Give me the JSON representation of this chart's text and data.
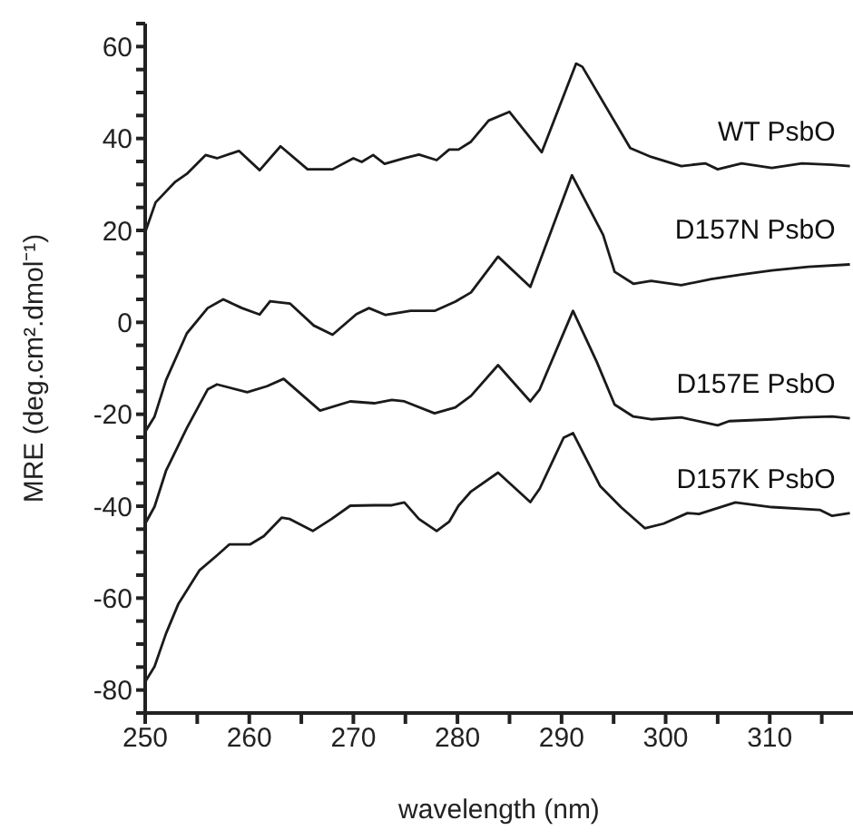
{
  "chart_data": {
    "type": "line",
    "xlabel": "wavelength (nm)",
    "ylabel": "MRE (deg.cm².dmol⁻¹)",
    "xlim": [
      250,
      318
    ],
    "ylim": [
      -85,
      65
    ],
    "xticks": [
      250,
      {
        "value": 255,
        "label": null
      },
      260,
      {
        "value": 265,
        "label": null
      },
      270,
      {
        "value": 275,
        "label": null
      },
      280,
      {
        "value": 285,
        "label": null
      },
      290,
      {
        "value": 295,
        "label": null
      },
      300,
      {
        "value": 305,
        "label": null
      },
      310,
      {
        "value": 315,
        "label": null
      }
    ],
    "yticks": [
      {
        "value": -85,
        "label": null
      },
      -80,
      {
        "value": -75,
        "label": null
      },
      {
        "value": -70,
        "label": null
      },
      {
        "value": -65,
        "label": null
      },
      -60,
      {
        "value": -55,
        "label": null
      },
      {
        "value": -50,
        "label": null
      },
      {
        "value": -45,
        "label": null
      },
      -40,
      {
        "value": -35,
        "label": null
      },
      {
        "value": -30,
        "label": null
      },
      {
        "value": -25,
        "label": null
      },
      -20,
      {
        "value": -15,
        "label": null
      },
      {
        "value": -10,
        "label": null
      },
      {
        "value": -5,
        "label": null
      },
      0,
      {
        "value": 5,
        "label": null
      },
      {
        "value": 10,
        "label": null
      },
      {
        "value": 15,
        "label": null
      },
      20,
      {
        "value": 25,
        "label": null
      },
      {
        "value": 30,
        "label": null
      },
      {
        "value": 35,
        "label": null
      },
      40,
      {
        "value": 45,
        "label": null
      },
      {
        "value": 50,
        "label": null
      },
      {
        "value": 55,
        "label": null
      },
      60,
      {
        "value": 65,
        "label": null
      }
    ],
    "grid": false,
    "legend": false,
    "marker": "none",
    "line_style": "solid",
    "series": [
      {
        "name": "WT PsbO",
        "color": "#1a1a1a",
        "x": [
          250,
          251,
          252.9,
          254,
          255.8,
          256.9,
          259,
          261,
          263,
          265.6,
          268,
          270,
          270.8,
          271.9,
          273,
          274.9,
          276.3,
          278,
          279.2,
          280.1,
          281.3,
          283,
          285,
          288.1,
          291.4,
          292,
          296.6,
          298.6,
          301.5,
          303.8,
          305,
          307.3,
          310.2,
          313.1,
          316,
          317.7
        ],
        "values": [
          19.6,
          26.1,
          30.6,
          32.3,
          36.4,
          35.7,
          37.3,
          33.1,
          38.3,
          33.3,
          33.3,
          35.7,
          34.9,
          36.4,
          34.5,
          35.7,
          36.5,
          35.3,
          37.6,
          37.6,
          39.3,
          43.9,
          45.8,
          37,
          56.3,
          55.6,
          37.9,
          36,
          34,
          34.6,
          33.3,
          34.6,
          33.6,
          34.6,
          34.3,
          34
        ]
      },
      {
        "name": "D157N PsbO",
        "color": "#1a1a1a",
        "x": [
          250,
          250.9,
          252,
          254,
          256,
          257.5,
          259.3,
          261,
          262,
          263.9,
          266.2,
          268,
          270.3,
          271.5,
          273.1,
          275.5,
          277.8,
          279.8,
          281.3,
          283.9,
          287,
          291,
          294,
          295.1,
          296.9,
          298.6,
          301.5,
          304.4,
          307.3,
          310.2,
          313.7,
          317.7
        ],
        "values": [
          -23.8,
          -20.5,
          -12.6,
          -2.4,
          3.1,
          5,
          3.1,
          1.7,
          4.6,
          4.1,
          -0.7,
          -2.7,
          1.8,
          3.1,
          1.6,
          2.5,
          2.5,
          4.5,
          6.5,
          14.3,
          7.7,
          32,
          19,
          11,
          8.4,
          9,
          8.1,
          9.4,
          10.4,
          11.3,
          12.1,
          12.6
        ]
      },
      {
        "name": "D157E PsbO",
        "color": "#1a1a1a",
        "x": [
          250,
          250.9,
          252,
          254,
          256,
          256.9,
          259.8,
          261.7,
          263.3,
          266.8,
          269.7,
          272,
          273.7,
          274.9,
          277.8,
          279.8,
          281.3,
          283.9,
          287,
          287.9,
          291.1,
          293.4,
          295.1,
          296.9,
          298.6,
          301.5,
          305,
          306.1,
          310.2,
          313.1,
          316,
          317.7
        ],
        "values": [
          -43.8,
          -40.1,
          -32.3,
          -23,
          -14.6,
          -13.5,
          -15.2,
          -13.9,
          -12.3,
          -19.2,
          -17.2,
          -17.6,
          -16.9,
          -17.2,
          -19.8,
          -18.5,
          -16,
          -9.3,
          -17.2,
          -14.6,
          2.5,
          -8.7,
          -17.9,
          -20.5,
          -21.1,
          -20.7,
          -22.4,
          -21.5,
          -21.1,
          -20.7,
          -20.5,
          -20.9
        ]
      },
      {
        "name": "D157K PsbO",
        "color": "#1a1a1a",
        "x": [
          250,
          250.9,
          252,
          253.2,
          255.2,
          256.9,
          258.1,
          260.1,
          261.4,
          263.1,
          263.9,
          266.1,
          267.9,
          269.7,
          272,
          273.7,
          274.9,
          276.3,
          278,
          279.2,
          280.1,
          281.3,
          283.9,
          287,
          287.9,
          290.2,
          291.1,
          293.7,
          295.7,
          298,
          299.8,
          302.1,
          303.2,
          306.7,
          310.2,
          314.8,
          316,
          317.7
        ],
        "values": [
          -78.2,
          -74.9,
          -67.7,
          -61.2,
          -54,
          -50.7,
          -48.3,
          -48.3,
          -46.5,
          -42.5,
          -42.8,
          -45.4,
          -42.8,
          -39.9,
          -39.8,
          -39.8,
          -39.2,
          -42.8,
          -45.4,
          -43.4,
          -39.9,
          -36.8,
          -32.7,
          -39.1,
          -36.2,
          -25.1,
          -24.1,
          -35.6,
          -40.2,
          -44.8,
          -43.8,
          -41.5,
          -41.7,
          -39.2,
          -40.2,
          -40.8,
          -42.1,
          -41.5
        ]
      }
    ]
  }
}
